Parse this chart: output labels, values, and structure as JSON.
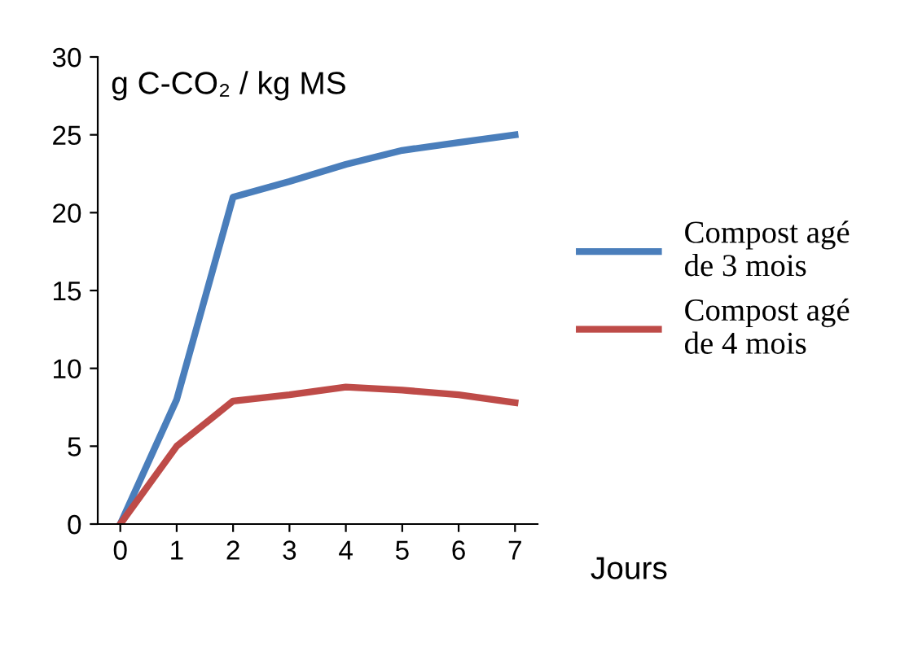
{
  "chart_data": {
    "type": "line",
    "ylabel": "g C-CO₂ / kg MS",
    "xlabel": "Jours",
    "categories": [
      "0",
      "1",
      "2",
      "3",
      "4",
      "5",
      "6",
      "7"
    ],
    "series": [
      {
        "name": "Compost agé de 3 mois",
        "color": "#4a7ebb",
        "values": [
          0,
          8,
          21,
          22,
          23.1,
          24,
          24.5,
          25
        ]
      },
      {
        "name": "Compost agé de 4 mois",
        "color": "#be4b48",
        "values": [
          0,
          5,
          7.9,
          8.3,
          8.8,
          8.6,
          8.3,
          7.8
        ]
      }
    ],
    "ylim": [
      0,
      30
    ],
    "yticks": [
      0,
      5,
      10,
      15,
      20,
      25,
      30
    ],
    "grid": false,
    "legend": "right",
    "marker": "none",
    "line_style": "solid"
  }
}
